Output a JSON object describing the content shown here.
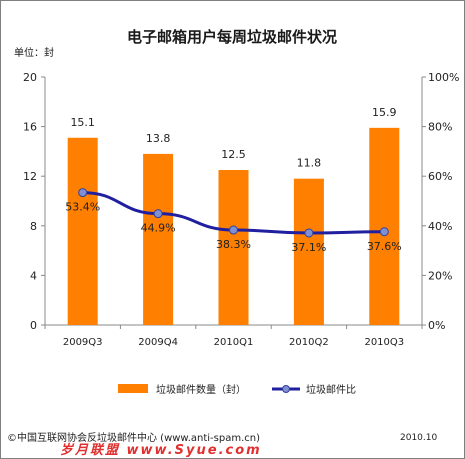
{
  "chart_data": {
    "type": "bar",
    "title": "电子邮箱用户每周垃圾邮件状况",
    "unit_label": "单位：封",
    "categories": [
      "2009Q3",
      "2009Q4",
      "2010Q1",
      "2010Q2",
      "2010Q3"
    ],
    "series": [
      {
        "name": "垃圾邮件数量（封）",
        "type": "bar",
        "axis": "left",
        "values": [
          15.1,
          13.8,
          12.5,
          11.8,
          15.9
        ],
        "color": "#ff7f00"
      },
      {
        "name": "垃圾邮件比",
        "type": "line",
        "axis": "right",
        "values": [
          53.4,
          44.9,
          38.3,
          37.1,
          37.6
        ],
        "color": "#1f1f9f"
      }
    ],
    "left_axis": {
      "min": 0,
      "max": 20,
      "ticks": [
        0,
        4,
        8,
        12,
        16,
        20
      ]
    },
    "right_axis": {
      "min": 0,
      "max": 100,
      "ticks": [
        0,
        20,
        40,
        60,
        80,
        100
      ],
      "suffix": "%"
    },
    "grid": false,
    "legend": "bottom"
  },
  "footer": {
    "source": "©中国互联网协会反垃圾邮件中心 (www.anti-spam.cn)",
    "date": "2010.10",
    "watermark": "岁月联盟 www.Syue.com"
  }
}
